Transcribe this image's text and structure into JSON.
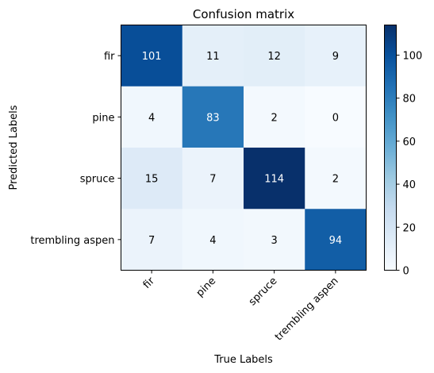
{
  "chart_data": {
    "type": "heatmap",
    "title": "Confusion matrix",
    "xlabel": "True Labels",
    "ylabel": "Predicted Labels",
    "x_categories": [
      "fir",
      "pine",
      "spruce",
      "trembling aspen"
    ],
    "y_categories": [
      "fir",
      "pine",
      "spruce",
      "trembling aspen"
    ],
    "values": [
      [
        101,
        11,
        12,
        9
      ],
      [
        4,
        83,
        2,
        0
      ],
      [
        15,
        7,
        114,
        2
      ],
      [
        7,
        4,
        3,
        94
      ]
    ],
    "colormap": "Blues",
    "colorbar": {
      "range": [
        0,
        114
      ],
      "ticks": [
        0,
        20,
        40,
        60,
        80,
        100
      ],
      "tick_labels": [
        "0",
        "20",
        "40",
        "60",
        "80",
        "100"
      ]
    },
    "grid": false
  }
}
